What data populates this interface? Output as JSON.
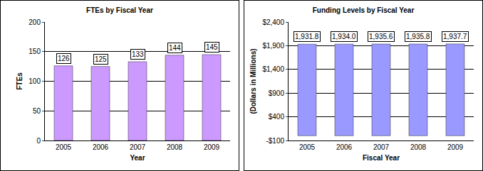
{
  "chart_data": [
    {
      "type": "bar",
      "title": "FTEs by Fiscal Year",
      "x_label": "Year",
      "y_label": "FTEs",
      "categories": [
        "2005",
        "2006",
        "2007",
        "2008",
        "2009"
      ],
      "values": [
        126,
        125,
        133,
        144,
        145
      ],
      "color": "#cc99ff",
      "ylim": [
        0,
        200
      ],
      "yticks": [
        0,
        50,
        100,
        150,
        200
      ],
      "grid": true,
      "data_labels": true
    },
    {
      "type": "bar",
      "title": "Funding Levels by Fiscal Year",
      "x_label": "Fiscal Year",
      "y_label": "(Dollars in Millions)",
      "categories": [
        "2005",
        "2006",
        "2007",
        "2008",
        "2009"
      ],
      "values": [
        1931.8,
        1934.0,
        1935.6,
        1935.8,
        1937.7
      ],
      "value_labels": [
        "1,931.8",
        "1,934.0",
        "1,935.6",
        "1,935.8",
        "1,937.7"
      ],
      "color": "#9999ff",
      "ylim": [
        -100,
        2400
      ],
      "yticks": [
        {
          "value": -100,
          "label": "-$100"
        },
        {
          "value": 400,
          "label": "$400"
        },
        {
          "value": 900,
          "label": "$900"
        },
        {
          "value": 1400,
          "label": "$1,400"
        },
        {
          "value": 1900,
          "label": "$1,900"
        },
        {
          "value": 2400,
          "label": "$2,400"
        }
      ],
      "grid": true,
      "data_labels": true
    }
  ]
}
